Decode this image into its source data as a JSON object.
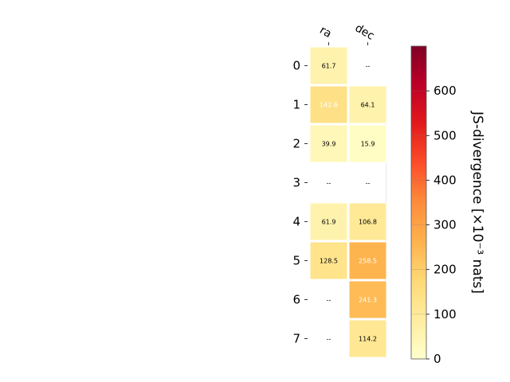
{
  "chart_data": {
    "type": "heatmap",
    "columns": [
      "ra",
      "dec"
    ],
    "rows": [
      "0",
      "1",
      "2",
      "3",
      "4",
      "5",
      "6",
      "7"
    ],
    "values": [
      [
        61.7,
        null
      ],
      [
        142.6,
        64.1
      ],
      [
        39.9,
        15.9
      ],
      [
        null,
        null
      ],
      [
        61.9,
        106.8
      ],
      [
        128.5,
        258.5
      ],
      [
        null,
        241.3
      ],
      [
        null,
        114.2
      ]
    ],
    "cell_labels": [
      [
        "61.7",
        "--"
      ],
      [
        "142.6",
        "64.1"
      ],
      [
        "39.9",
        "15.9"
      ],
      [
        "--",
        "--"
      ],
      [
        "61.9",
        "106.8"
      ],
      [
        "128.5",
        "258.5"
      ],
      [
        "--",
        "241.3"
      ],
      [
        "--",
        "114.2"
      ]
    ],
    "missing_label": "--",
    "colorbar": {
      "label": "JS-divergence [×10⁻³ nats]",
      "range": [
        0,
        700
      ],
      "ticks": [
        0,
        100,
        200,
        300,
        400,
        500,
        600
      ],
      "colormap": "YlOrRd"
    },
    "colors": {
      "cell_border": "#ffffff",
      "light_text": "#ffffff",
      "dark_text": "#000000"
    }
  }
}
